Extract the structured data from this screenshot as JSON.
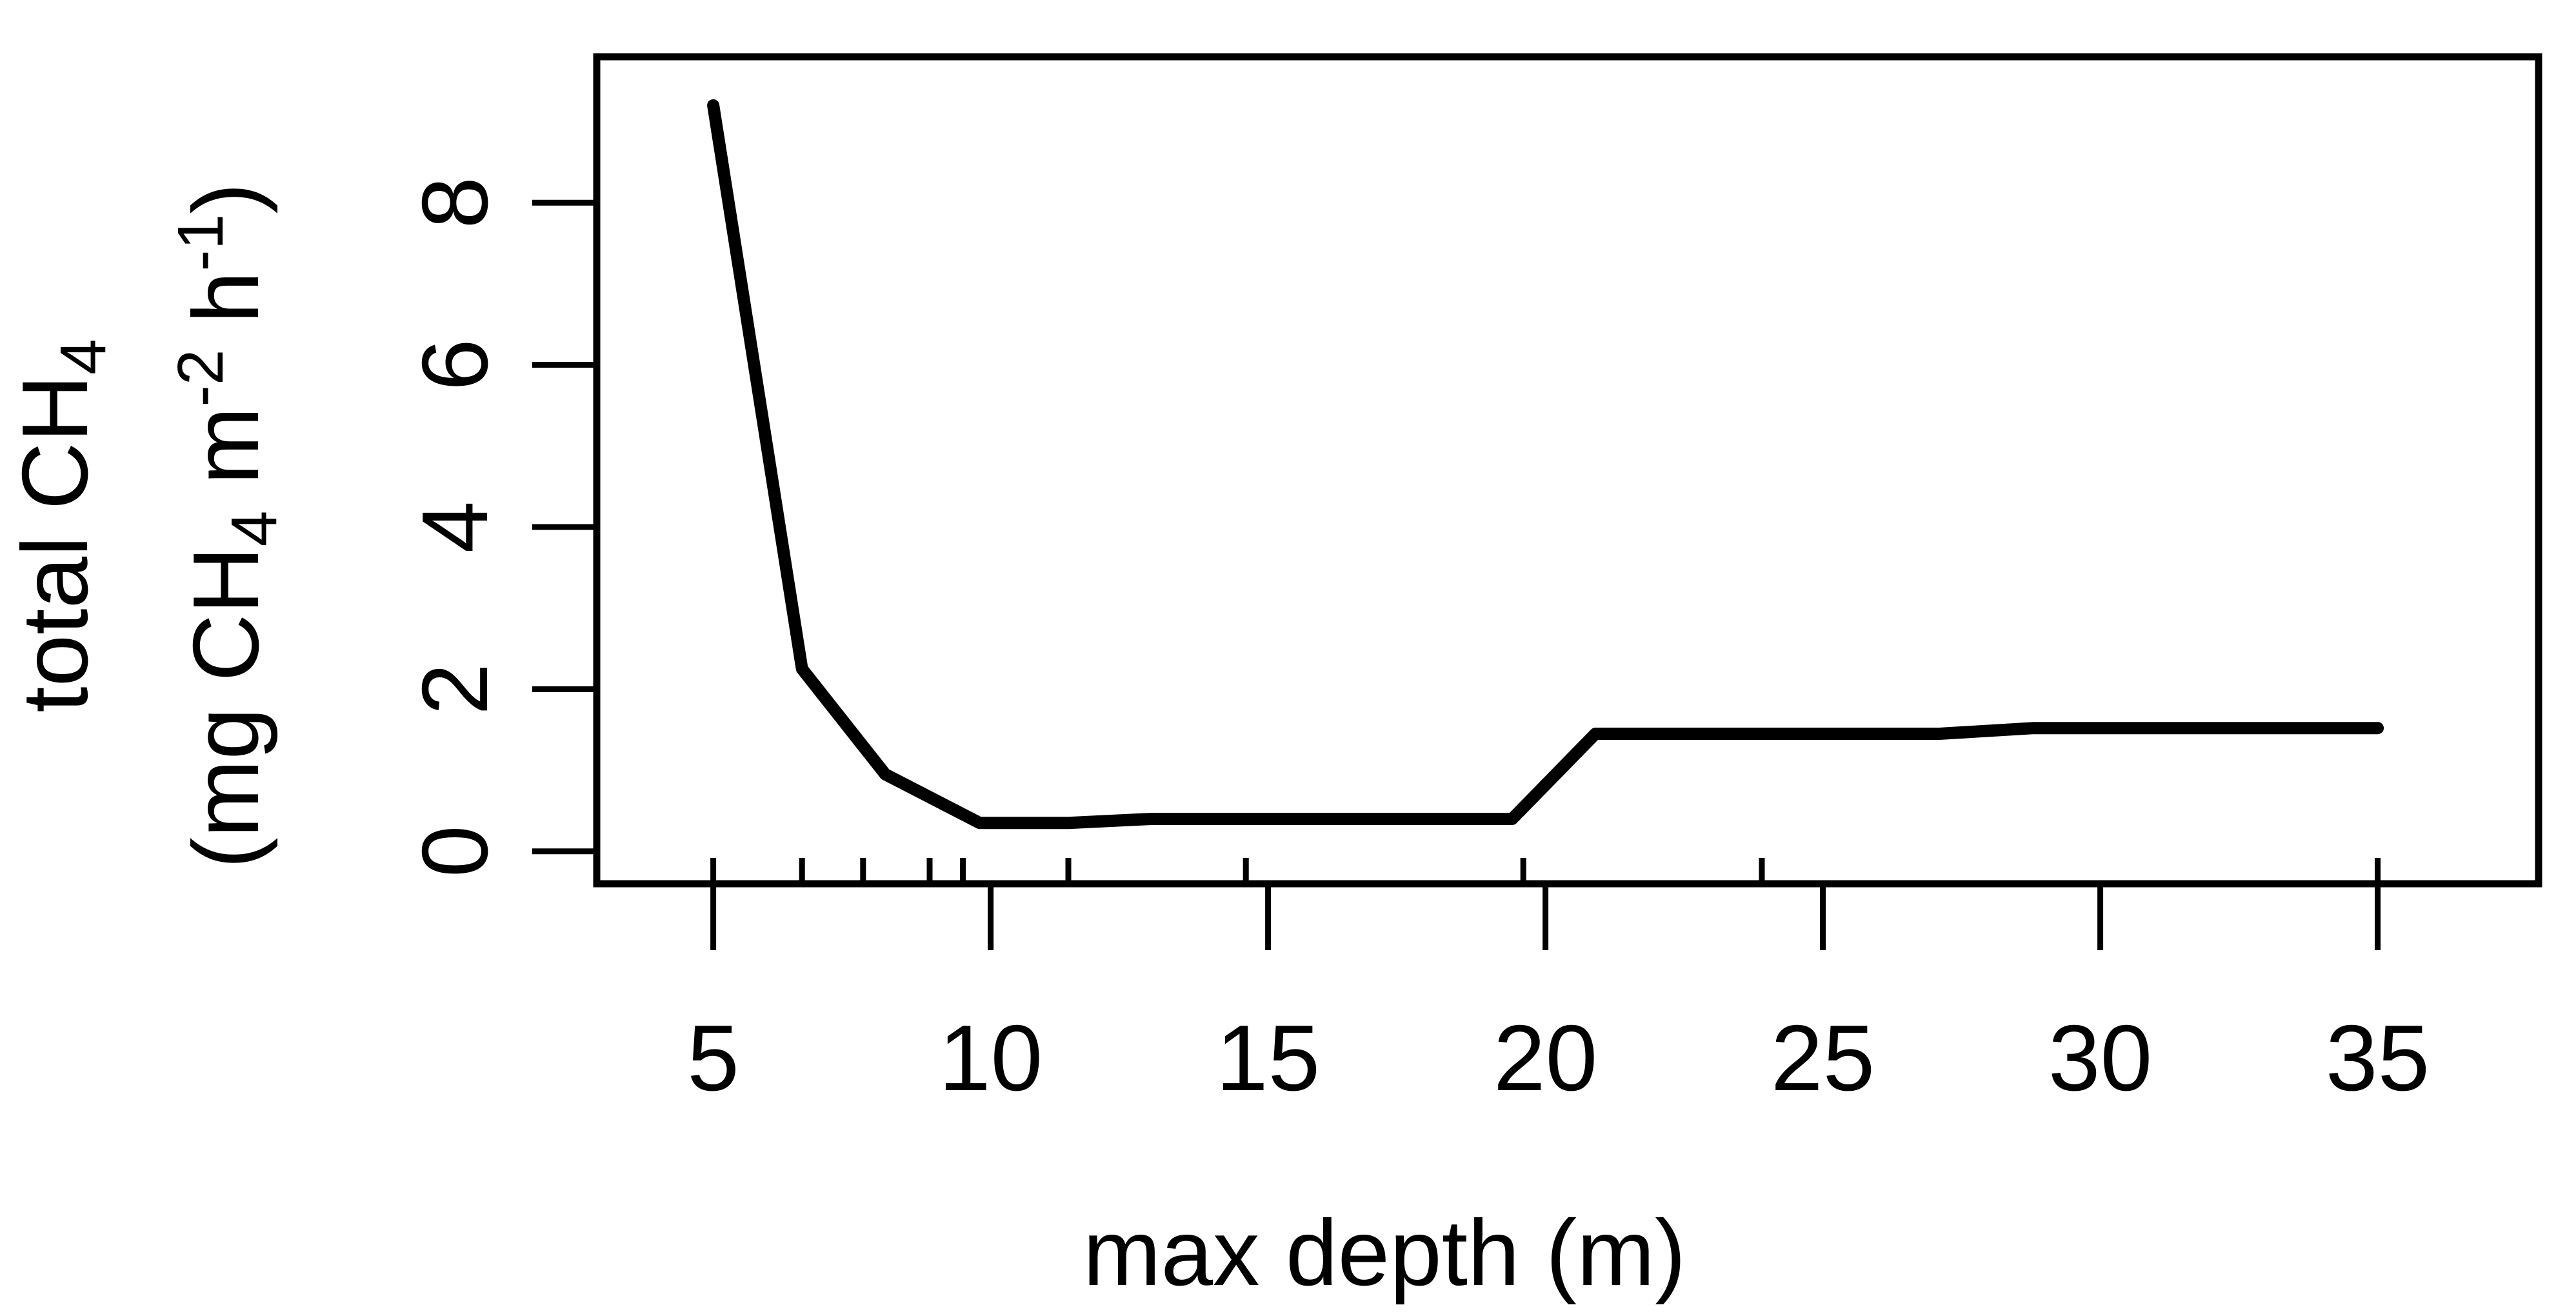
{
  "chart_data": {
    "type": "line",
    "xlabel": "max depth (m)",
    "ylabel": {
      "line1_main": "total CH",
      "line1_sub": "4",
      "line2_a": "(mg CH",
      "line2_sub": "4",
      "line2_b": " m",
      "line2_sup1": "-2",
      "line2_c": " h",
      "line2_sup2": "-1",
      "line2_d": ")"
    },
    "xlim": [
      2.9,
      37.9
    ],
    "ylim": [
      -0.4,
      9.8
    ],
    "x_ticks": [
      "5",
      "10",
      "15",
      "20",
      "25",
      "30",
      "35"
    ],
    "y_ticks": [
      "0",
      "2",
      "4",
      "6",
      "8"
    ],
    "rug": [
      5,
      6.6,
      7.7,
      8.9,
      9.5,
      11.4,
      14.6,
      19.6,
      23.9,
      35
    ],
    "series": [
      {
        "x": [
          5,
          6.6,
          8.1,
          9.8,
          11.4,
          12.9,
          19.4,
          20.9,
          27.1,
          28.8,
          35
        ],
        "y": [
          9.2,
          2.25,
          0.95,
          0.35,
          0.35,
          0.4,
          0.4,
          1.45,
          1.45,
          1.52,
          1.52
        ]
      }
    ],
    "grid": false,
    "legend": "none"
  }
}
